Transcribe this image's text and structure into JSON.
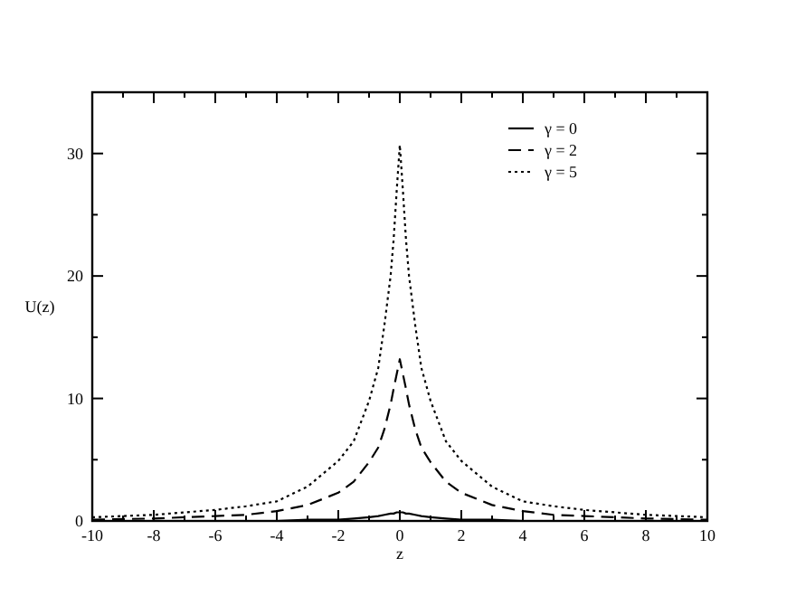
{
  "chart_data": {
    "type": "line",
    "xlabel": "z",
    "ylabel": "U(z)",
    "x": [
      -10,
      -8,
      -6,
      -5,
      -4,
      -3,
      -2,
      -1.5,
      -1,
      -0.7,
      -0.5,
      -0.3,
      -0.2,
      -0.1,
      0,
      0.1,
      0.2,
      0.3,
      0.5,
      0.7,
      1,
      1.5,
      2,
      3,
      4,
      5,
      6,
      8,
      10
    ],
    "series": [
      {
        "name": "γ = 0",
        "color": "#000000",
        "line_style": "solid",
        "values": [
          0,
          0,
          0,
          0,
          0,
          0.1,
          0.1,
          0.2,
          0.3,
          0.4,
          0.5,
          0.6,
          0.6,
          0.7,
          0.7,
          0.7,
          0.6,
          0.6,
          0.5,
          0.4,
          0.3,
          0.2,
          0.1,
          0.1,
          0,
          0,
          0,
          0,
          0
        ]
      },
      {
        "name": "γ = 2",
        "color": "#000000",
        "line_style": "dashed",
        "values": [
          0.1,
          0.2,
          0.4,
          0.5,
          0.8,
          1.3,
          2.3,
          3.2,
          4.8,
          6,
          7.5,
          9.5,
          10.8,
          12,
          13.2,
          12,
          10.8,
          9.5,
          7.5,
          6,
          4.8,
          3.2,
          2.3,
          1.3,
          0.8,
          0.5,
          0.4,
          0.2,
          0.1
        ]
      },
      {
        "name": "γ = 5",
        "color": "#000000",
        "line_style": "dotted",
        "values": [
          0.3,
          0.5,
          0.9,
          1.2,
          1.6,
          2.8,
          4.9,
          6.5,
          9.8,
          12.5,
          16,
          20,
          23,
          27,
          30.7,
          27,
          23,
          20,
          16,
          12.5,
          9.8,
          6.5,
          4.9,
          2.8,
          1.6,
          1.2,
          0.9,
          0.5,
          0.3
        ]
      }
    ],
    "xlim": [
      -10,
      10
    ],
    "ylim": [
      0,
      35
    ],
    "xticks": [
      -10,
      {
        "value": -9,
        "label": null
      },
      -8,
      {
        "value": -7,
        "label": null
      },
      -6,
      {
        "value": -5,
        "label": null
      },
      -4,
      {
        "value": -3,
        "label": null
      },
      -2,
      {
        "value": -1,
        "label": null
      },
      0,
      {
        "value": 1,
        "label": null
      },
      2,
      {
        "value": 3,
        "label": null
      },
      4,
      {
        "value": 5,
        "label": null
      },
      6,
      {
        "value": 7,
        "label": null
      },
      8,
      {
        "value": 9,
        "label": null
      },
      10
    ],
    "yticks": [
      0,
      {
        "value": 5,
        "label": null
      },
      10,
      {
        "value": 15,
        "label": null
      },
      20,
      {
        "value": 25,
        "label": null
      },
      30,
      {
        "value": 35,
        "label": null
      }
    ],
    "legend": "top right",
    "grid": false,
    "marker": "none"
  }
}
